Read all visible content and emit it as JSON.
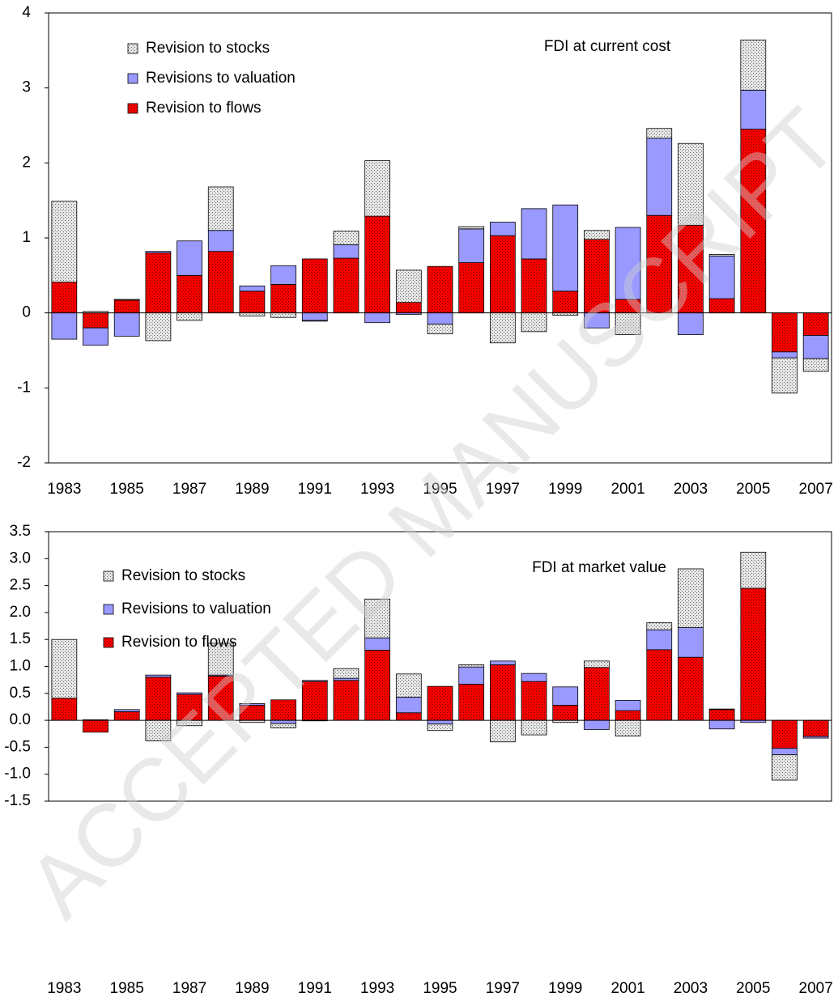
{
  "watermark": "ACCEPTED MANUSCRIPT",
  "chart_data": [
    {
      "type": "bar",
      "stacked": true,
      "annotation": "FDI at current cost",
      "legend": "upper left",
      "categories": [
        "1983",
        null,
        "1985",
        null,
        "1987",
        null,
        "1989",
        null,
        "1991",
        null,
        "1993",
        null,
        "1995",
        null,
        "1997",
        null,
        "1999",
        null,
        "2001",
        null,
        "2003",
        null,
        "2005",
        null,
        "2007"
      ],
      "series": [
        {
          "name": "Revision to flows",
          "color": "#ff0000",
          "pattern": "dotted",
          "values": [
            0.41,
            -0.2,
            0.17,
            0.8,
            0.5,
            0.82,
            0.29,
            0.38,
            0.72,
            0.73,
            1.29,
            0.14,
            0.62,
            0.67,
            1.03,
            0.72,
            0.29,
            0.98,
            0.18,
            1.3,
            1.17,
            0.19,
            2.45,
            -0.52,
            -0.3
          ]
        },
        {
          "name": "Revisions to valuation",
          "color": "#9999ff",
          "values": [
            -0.35,
            -0.23,
            -0.31,
            0.02,
            0.46,
            0.28,
            0.07,
            0.25,
            -0.1,
            0.18,
            -0.13,
            -0.02,
            -0.15,
            0.45,
            0.18,
            0.67,
            1.15,
            -0.2,
            0.96,
            1.03,
            -0.29,
            0.57,
            0.52,
            -0.08,
            -0.31
          ]
        },
        {
          "name": "Revision to stocks",
          "color": "#e6e6e6",
          "pattern": "dotted",
          "values": [
            1.08,
            0.02,
            0.01,
            -0.37,
            -0.1,
            0.58,
            -0.04,
            -0.06,
            -0.01,
            0.18,
            0.74,
            0.43,
            -0.13,
            0.03,
            -0.4,
            -0.25,
            -0.03,
            0.12,
            -0.29,
            0.13,
            1.09,
            0.02,
            0.67,
            -0.47,
            -0.17
          ]
        }
      ],
      "ylim": [
        -2,
        4
      ],
      "yticks": [
        -2,
        -1,
        0,
        1,
        2,
        3,
        4
      ]
    },
    {
      "type": "bar",
      "stacked": true,
      "annotation": "FDI at market value",
      "legend": "upper left",
      "categories": [
        "1983",
        null,
        "1985",
        null,
        "1987",
        null,
        "1989",
        null,
        "1991",
        null,
        "1993",
        null,
        "1995",
        null,
        "1997",
        null,
        "1999",
        null,
        "2001",
        null,
        "2003",
        null,
        "2005",
        null,
        "2007"
      ],
      "series": [
        {
          "name": "Revision to flows",
          "color": "#ff0000",
          "pattern": "dotted",
          "values": [
            0.41,
            -0.22,
            0.16,
            0.8,
            0.48,
            0.82,
            0.28,
            0.38,
            0.72,
            0.74,
            1.3,
            0.14,
            0.63,
            0.67,
            1.03,
            0.72,
            0.28,
            0.98,
            0.18,
            1.31,
            1.17,
            0.2,
            2.45,
            -0.52,
            -0.3
          ]
        },
        {
          "name": "Revisions to valuation",
          "color": "#9999ff",
          "values": [
            0,
            0,
            0.04,
            0.04,
            0.03,
            0.02,
            0.03,
            -0.06,
            0.02,
            0.04,
            0.23,
            0.29,
            -0.07,
            0.32,
            0.07,
            0.15,
            0.34,
            -0.17,
            0.19,
            0.37,
            0.55,
            -0.16,
            -0.04,
            -0.12,
            -0.03
          ]
        },
        {
          "name": "Revision to stocks",
          "color": "#e6e6e6",
          "pattern": "dotted",
          "values": [
            1.09,
            0.01,
            0,
            -0.38,
            -0.1,
            0.59,
            -0.04,
            -0.08,
            -0.01,
            0.18,
            0.72,
            0.43,
            -0.12,
            0.04,
            -0.4,
            -0.27,
            -0.04,
            0.12,
            -0.29,
            0.13,
            1.09,
            0.01,
            0.67,
            -0.47,
            0
          ]
        }
      ],
      "ylim": [
        -1.5,
        3.5
      ],
      "yticks": [
        {
          "value": -1.5,
          "label": "-1.5"
        },
        {
          "value": -1,
          "label": "-1.0"
        },
        -0.5,
        {
          "value": 0,
          "label": "0.0"
        },
        0.5,
        {
          "value": 1,
          "label": "1.0"
        },
        1.5,
        {
          "value": 2,
          "label": "2.0"
        },
        2.5,
        {
          "value": 3,
          "label": "3.0"
        },
        3.5
      ]
    }
  ]
}
